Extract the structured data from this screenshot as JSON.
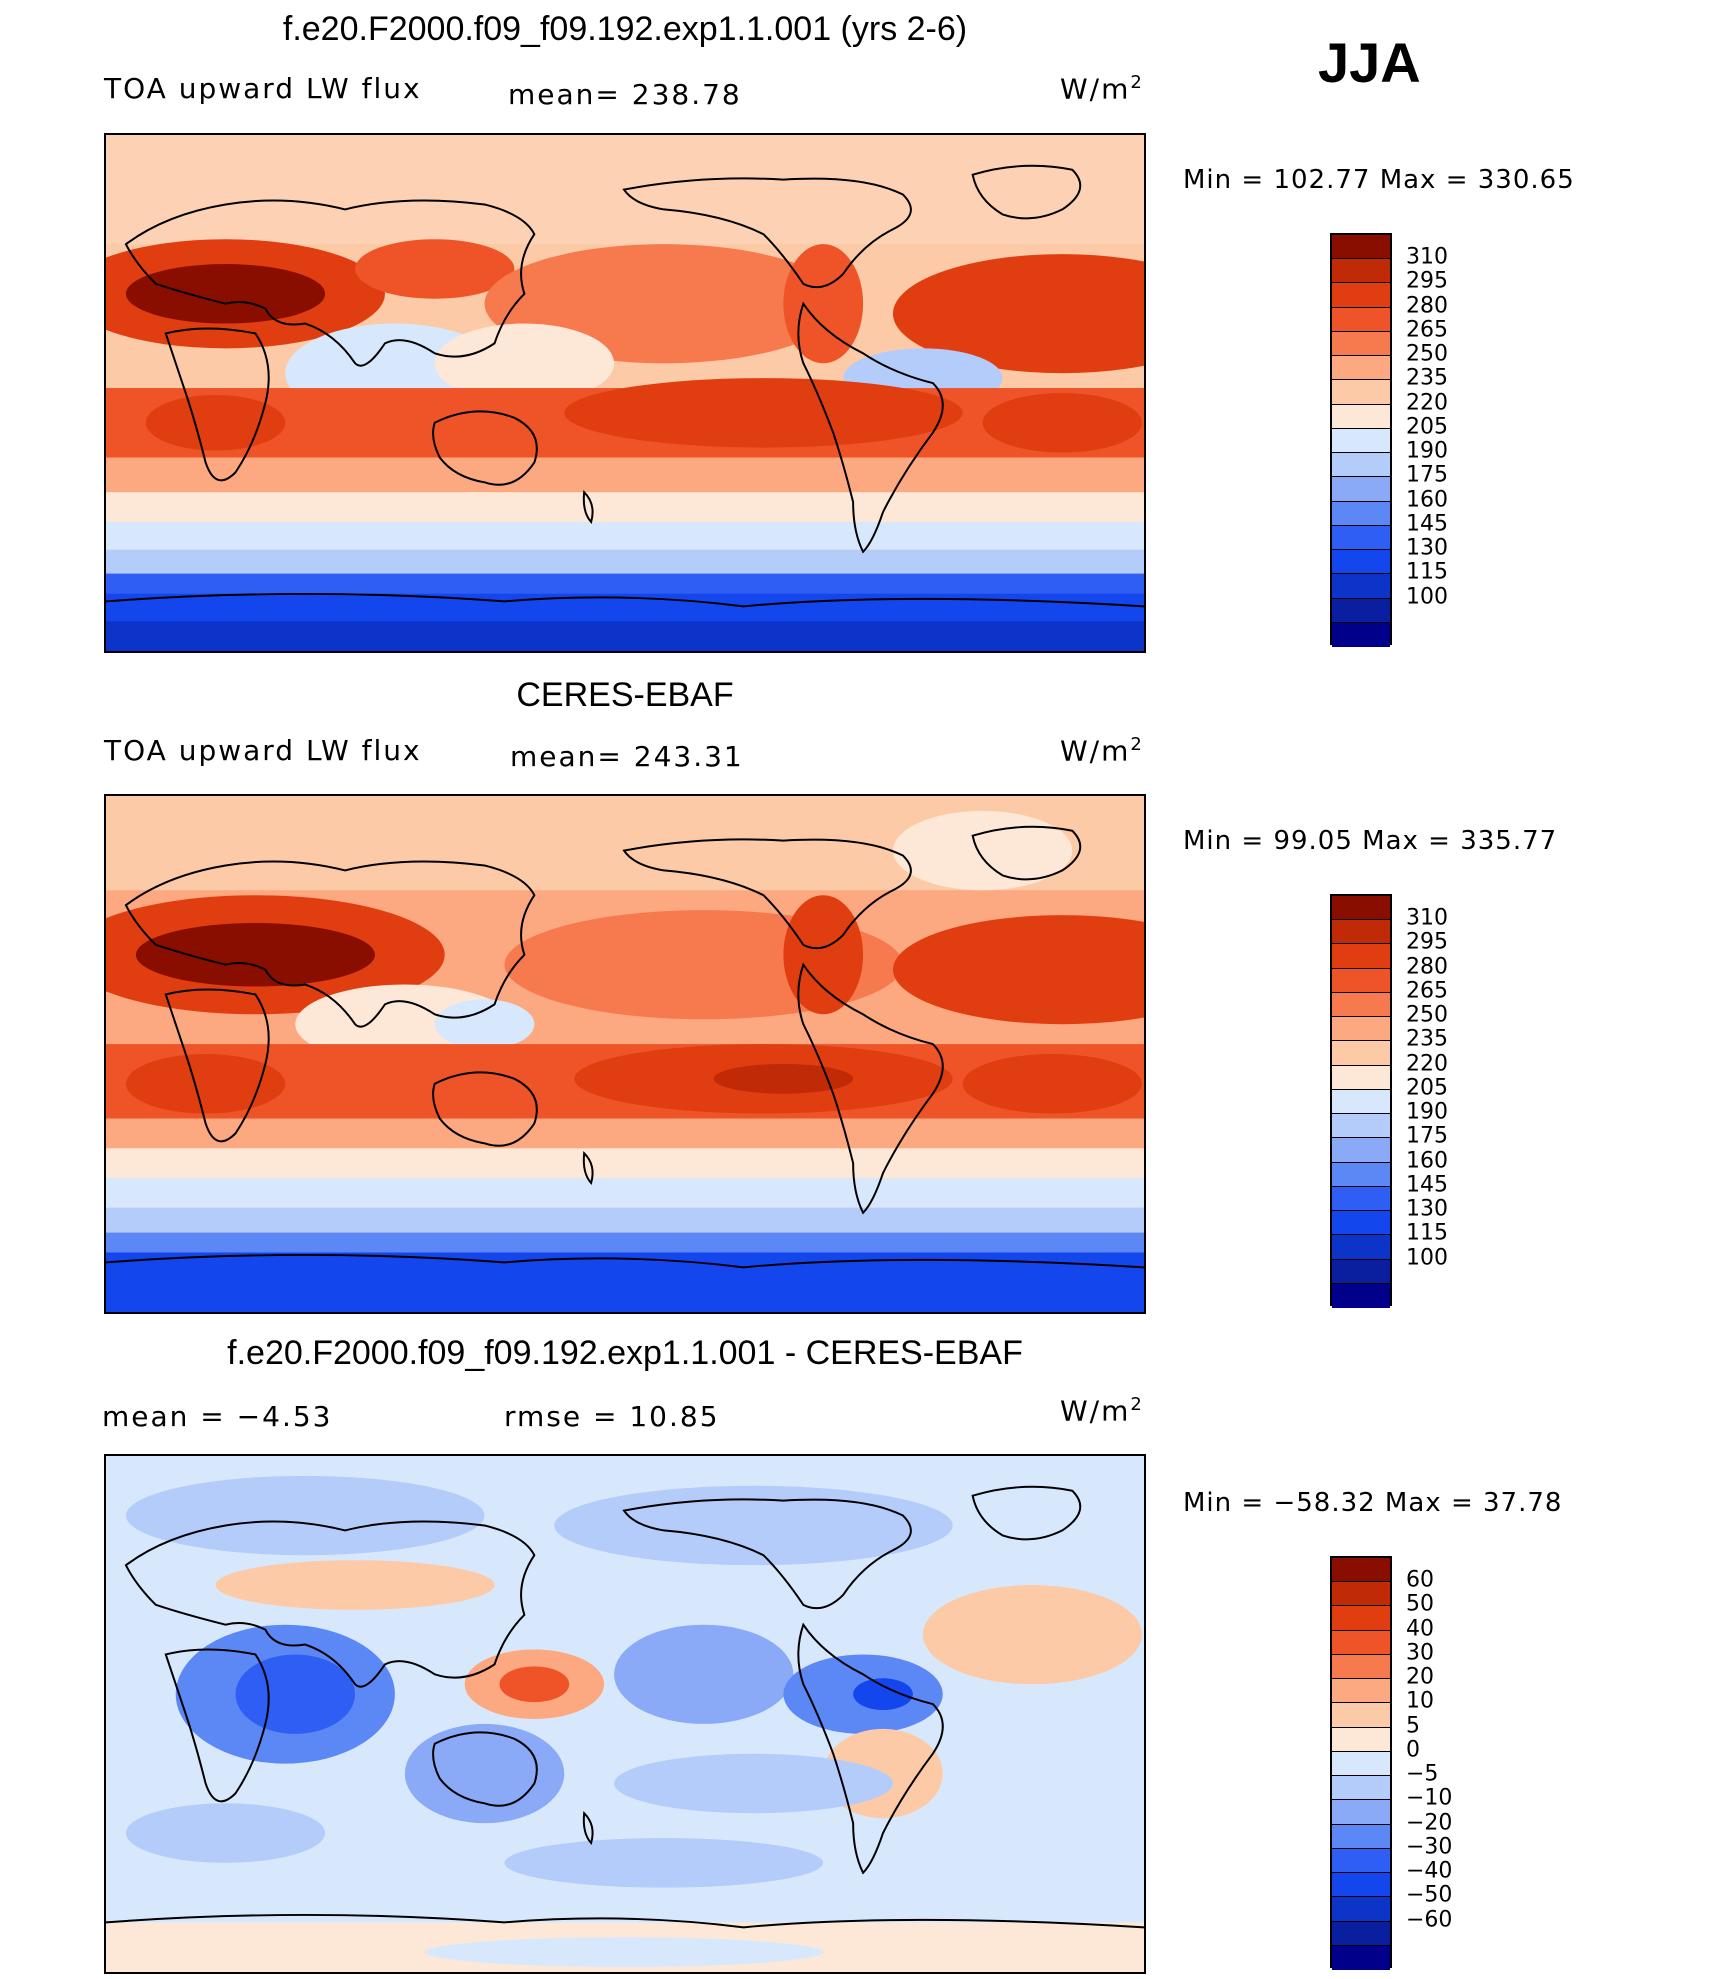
{
  "season_label": "JJA",
  "colors": {
    "blue": [
      "#00008b",
      "#0a1ea0",
      "#0c34c8",
      "#1446ee",
      "#2e5ef4",
      "#5c88f6",
      "#8aaaf8",
      "#b4ccfa",
      "#d8e8fc"
    ],
    "red": [
      "#fde8d8",
      "#fccaa6",
      "#fca880",
      "#f67a4e",
      "#ee5428",
      "#e03e10",
      "#c02a06",
      "#8a0e00"
    ]
  },
  "panels": [
    {
      "id": "model",
      "title": "f.e20.F2000.f09_f09.192.exp1.1.001 (yrs 2-6)",
      "left_label": "TOA  upward  LW  flux",
      "mean_text": "mean=  238.78",
      "units": "W/m",
      "units_sup": "2",
      "minmax": "Min  =  102.77  Max  =  330.65",
      "colorbar_levels": [
        "310",
        "295",
        "280",
        "265",
        "250",
        "235",
        "220",
        "205",
        "190",
        "175",
        "160",
        "145",
        "130",
        "115",
        "100"
      ]
    },
    {
      "id": "obs",
      "title": "CERES-EBAF",
      "left_label": "TOA  upward  LW  flux",
      "mean_text": "mean=  243.31",
      "units": "W/m",
      "units_sup": "2",
      "minmax": "Min  =    99.05  Max  =  335.77",
      "colorbar_levels": [
        "310",
        "295",
        "280",
        "265",
        "250",
        "235",
        "220",
        "205",
        "190",
        "175",
        "160",
        "145",
        "130",
        "115",
        "100"
      ]
    },
    {
      "id": "diff",
      "title": "f.e20.F2000.f09_f09.192.exp1.1.001 - CERES-EBAF",
      "left_label": "mean  =    −4.53",
      "mean_text": "rmse  =    10.85",
      "units": "W/m",
      "units_sup": "2",
      "minmax": "Min  =  −58.32  Max  =    37.78",
      "colorbar_levels": [
        "60",
        "50",
        "40",
        "30",
        "20",
        "10",
        "5",
        "0",
        "−5",
        "−10",
        "−20",
        "−30",
        "−40",
        "−50",
        "−60"
      ]
    }
  ]
}
